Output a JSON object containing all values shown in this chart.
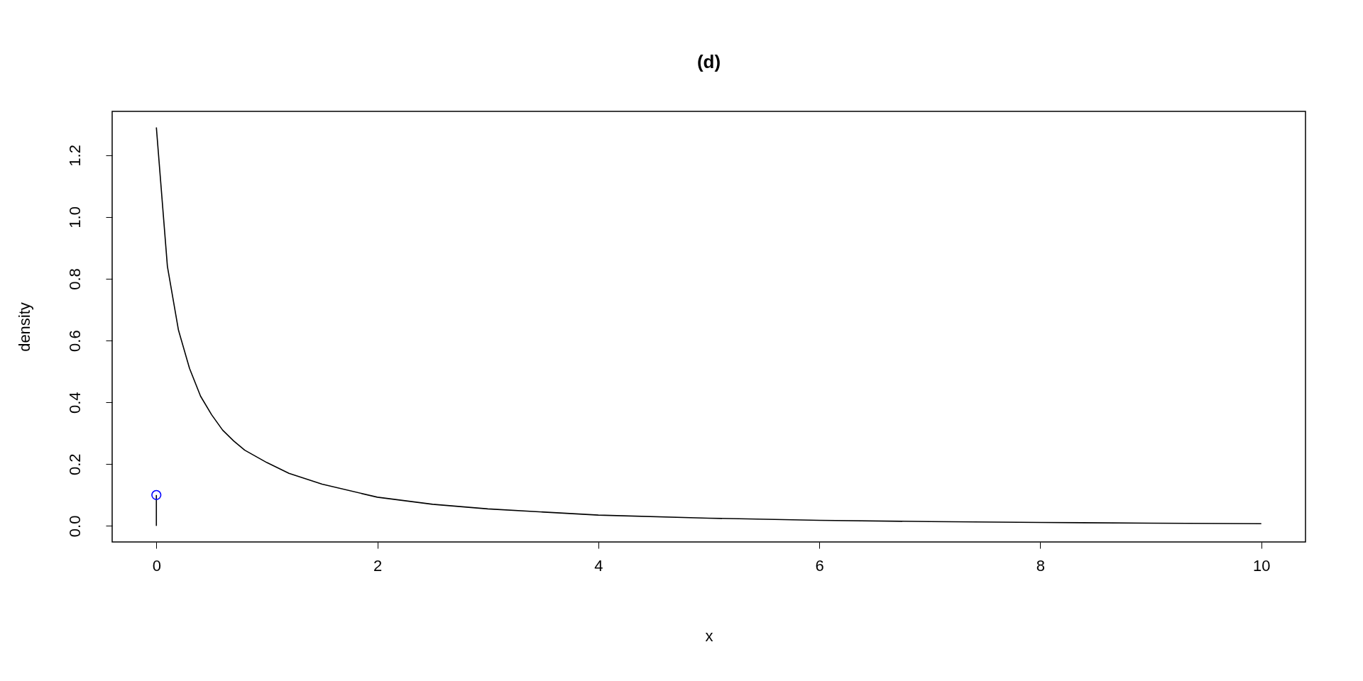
{
  "chart_data": {
    "type": "line",
    "title": "(d)",
    "xlabel": "x",
    "ylabel": "density",
    "series": [
      {
        "color": "#000000",
        "x": [
          0,
          0.1,
          0.2,
          0.3,
          0.4,
          0.5,
          0.6,
          0.7,
          0.8,
          1.0,
          1.2,
          1.5,
          2,
          2.5,
          3,
          4,
          5,
          6,
          7,
          8,
          9,
          10
        ],
        "values": [
          1.29,
          0.84,
          0.634,
          0.51,
          0.42,
          0.36,
          0.31,
          0.275,
          0.245,
          0.205,
          0.17,
          0.135,
          0.093,
          0.07,
          0.055,
          0.035,
          0.025,
          0.018,
          0.014,
          0.011,
          0.009,
          0.007
        ]
      },
      {
        "type": "lollipop",
        "marker": "circle",
        "color": "#0000ff",
        "x": [
          0
        ],
        "values": [
          0.1
        ]
      }
    ],
    "xlim": [
      -0.4,
      10.4
    ],
    "xticks": [
      0,
      2,
      4,
      6,
      8,
      10
    ],
    "ylim": [
      -0.052,
      1.342
    ],
    "yticks": [
      {
        "value": 0,
        "label": "0.0"
      },
      0.2,
      0.4,
      0.6,
      0.8,
      {
        "value": 1,
        "label": "1.0"
      },
      1.2
    ],
    "grid": false,
    "line_style": "solid"
  }
}
